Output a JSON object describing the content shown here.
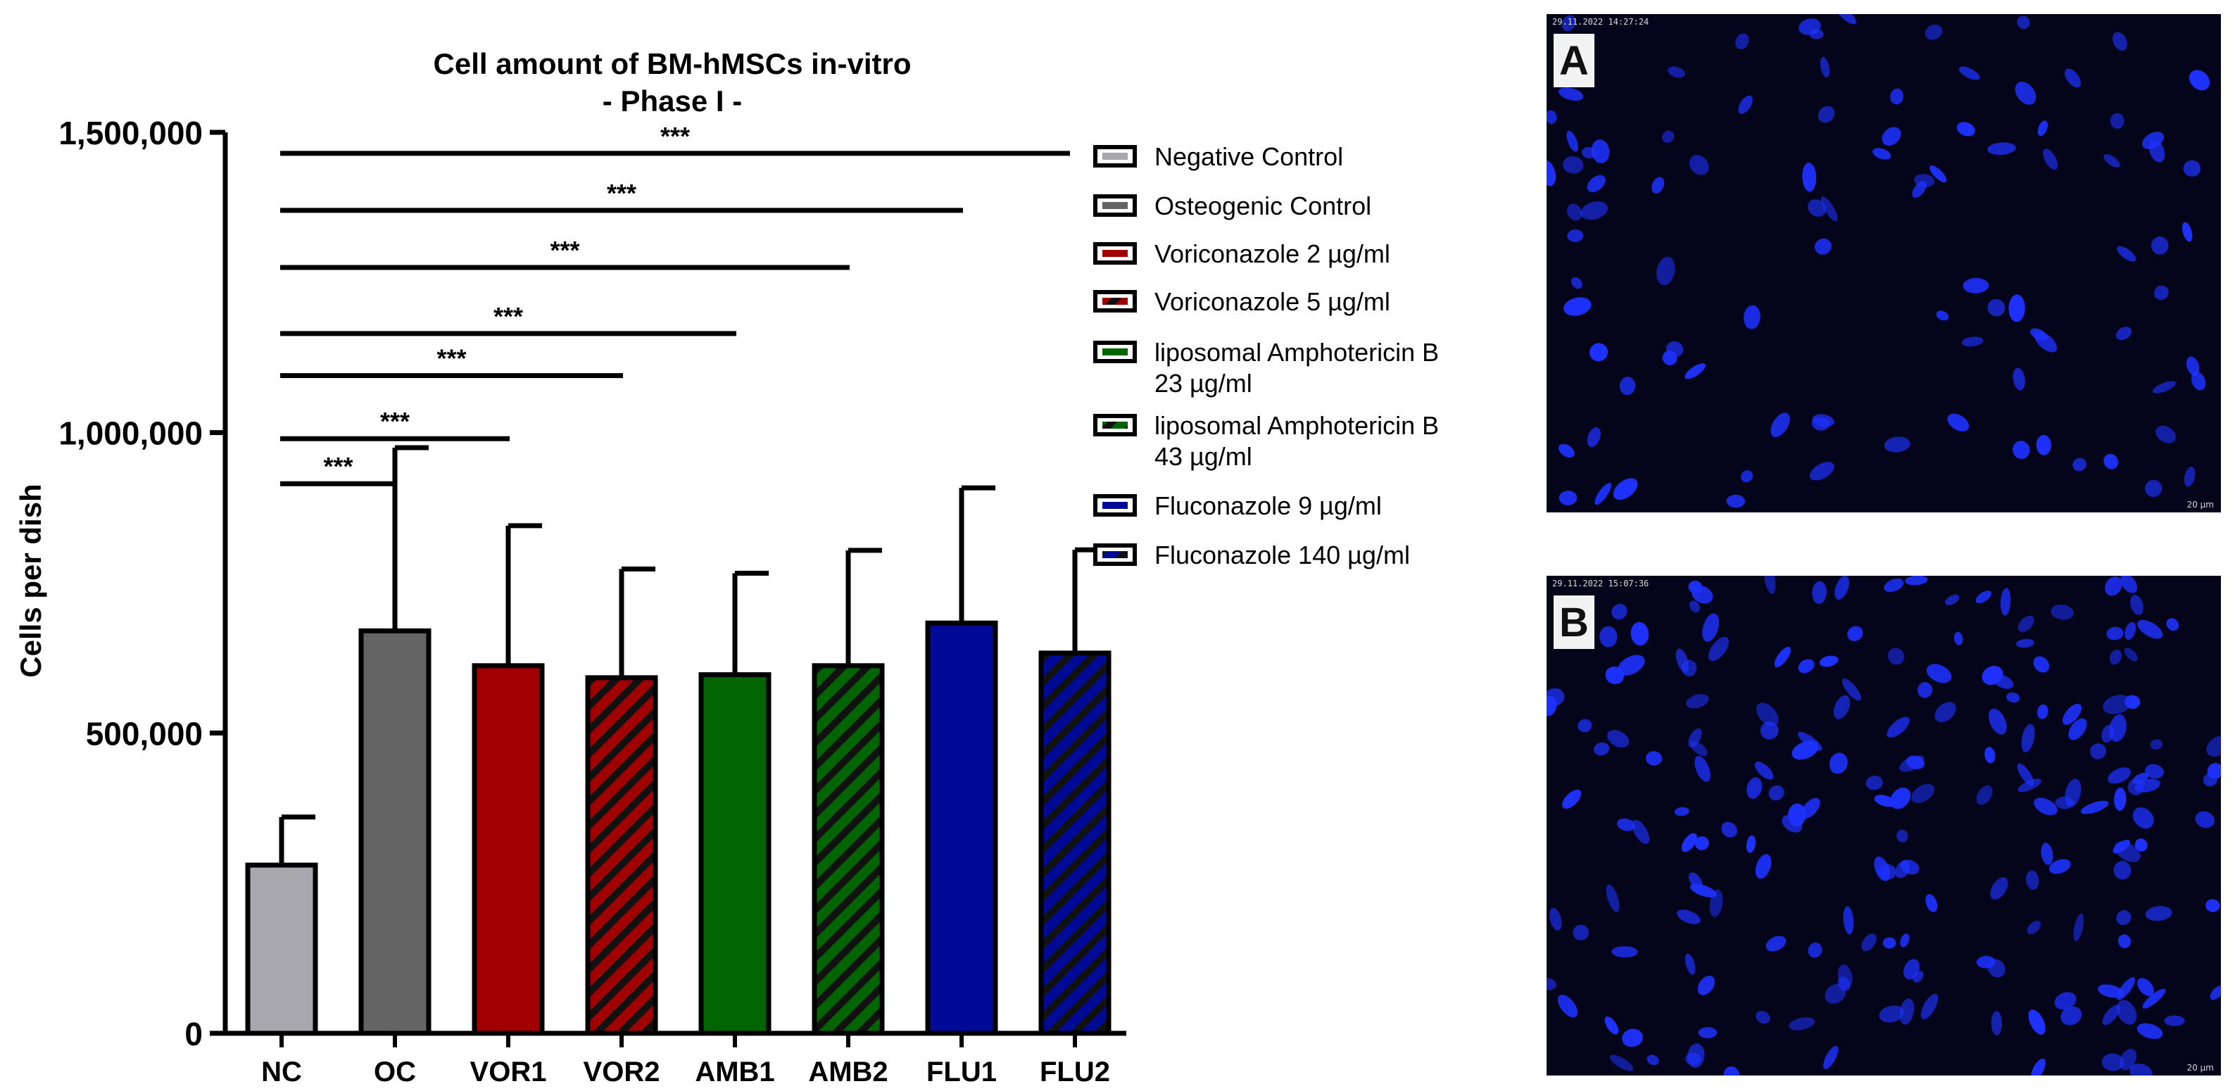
{
  "chart_data": {
    "type": "bar",
    "title_lines": [
      "Cell amount of BM-hMSCs in-vitro",
      "- Phase I -"
    ],
    "ylabel": "Cells per dish",
    "xlabel": "",
    "ylim": [
      0,
      1500000
    ],
    "yticks": [
      0,
      500000,
      1000000,
      1500000
    ],
    "ytick_labels": [
      "0",
      "500,000",
      "1,000,000",
      "1,500,000"
    ],
    "categories": [
      "NC",
      "OC",
      "VOR1",
      "VOR2",
      "AMB1",
      "AMB2",
      "FLU1",
      "FLU2"
    ],
    "values": [
      280000,
      670000,
      612000,
      592000,
      597000,
      612000,
      683000,
      633000
    ],
    "error_upper": [
      360000,
      975000,
      845000,
      773000,
      766000,
      804000,
      908000,
      805000
    ],
    "fill_colors": [
      "#a8a7ae",
      "#646464",
      "#a00000",
      "#a00000",
      "#006400",
      "#006400",
      "#000a96",
      "#000a96"
    ],
    "hatched": [
      false,
      false,
      false,
      true,
      false,
      true,
      false,
      true
    ],
    "legend_placement": "right",
    "legend": [
      {
        "lines": [
          "Negative Control"
        ]
      },
      {
        "lines": [
          "Osteogenic Control"
        ]
      },
      {
        "lines": [
          "Voriconazole 2 µg/ml"
        ]
      },
      {
        "lines": [
          "Voriconazole 5 µg/ml"
        ]
      },
      {
        "lines": [
          "liposomal Amphotericin  B",
          "23 µg/ml"
        ]
      },
      {
        "lines": [
          "liposomal Amphotericin  B",
          "43 µg/ml"
        ]
      },
      {
        "lines": [
          "Fluconazole 9 µg/ml"
        ]
      },
      {
        "lines": [
          "Fluconazole 140 µg/ml"
        ]
      }
    ],
    "significance": [
      {
        "from": "NC",
        "to": "OC",
        "y": 915000,
        "label": "***"
      },
      {
        "from": "NC",
        "to": "VOR1",
        "y": 990000,
        "label": "***"
      },
      {
        "from": "NC",
        "to": "VOR2",
        "y": 1095000,
        "label": "***"
      },
      {
        "from": "NC",
        "to": "AMB1",
        "y": 1165000,
        "label": "***"
      },
      {
        "from": "NC",
        "to": "AMB2",
        "y": 1275000,
        "label": "***"
      },
      {
        "from": "NC",
        "to": "FLU1",
        "y": 1370000,
        "label": "***"
      },
      {
        "from": "NC",
        "to": "FLU2",
        "y": 1465000,
        "label": "***"
      }
    ]
  },
  "panels": [
    {
      "label": "A",
      "timestamp": "29.11.2022 14:27:24",
      "scale_bar": "20 µm"
    },
    {
      "label": "B",
      "timestamp": "29.11.2022 15:07:36",
      "scale_bar": "20 µm"
    }
  ],
  "colors": {
    "nuclei": "#1a2cff",
    "background": "#04041a"
  }
}
